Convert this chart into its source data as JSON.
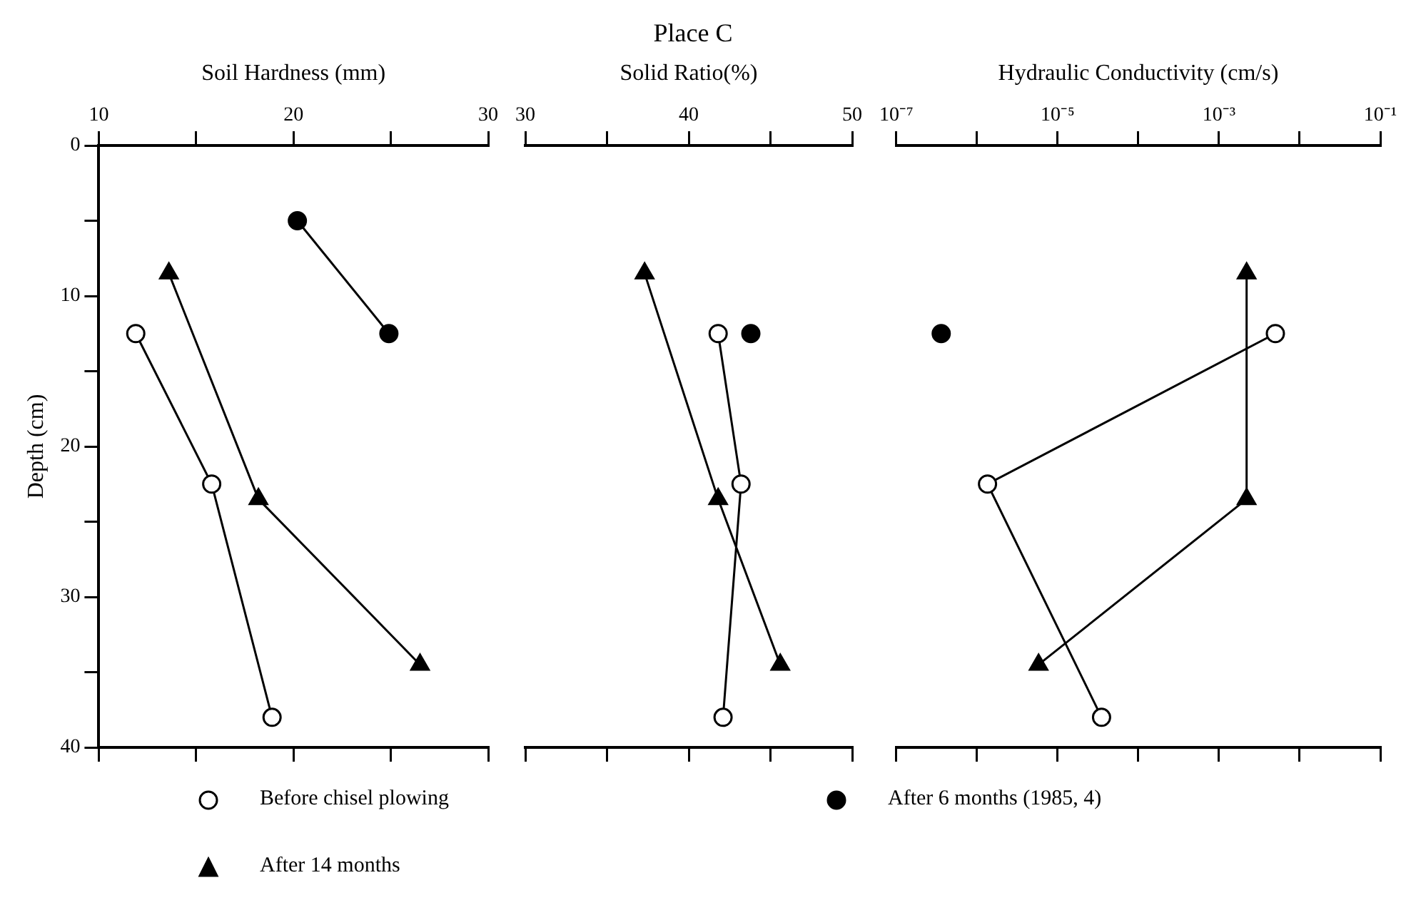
{
  "chart_data": [
    {
      "type": "line",
      "xlabel": "Soil Hardness (mm)",
      "ylabel": "Depth (cm)",
      "legend": "bottom",
      "xlim": [
        10,
        30
      ],
      "xticks": [
        10,
        {
          "value": 15,
          "label": null
        },
        20,
        {
          "value": 25,
          "label": null
        },
        30
      ],
      "ylim": [
        40,
        0
      ],
      "yticks": [
        0,
        {
          "value": 5,
          "label": null
        },
        10,
        {
          "value": 15,
          "label": null
        },
        20,
        {
          "value": 25,
          "label": null
        },
        30,
        {
          "value": 35,
          "label": null
        },
        40
      ],
      "series": [
        {
          "name": "Before chisel plowing",
          "color": "#ffffff",
          "marker": "circle",
          "x": [
            11.9,
            15.8,
            18.9
          ],
          "values": [
            12.5,
            22.5,
            38
          ]
        },
        {
          "name": "After 6 months (1985, 4)",
          "color": "#000000",
          "marker": "circle",
          "x": [
            20.2,
            24.9
          ],
          "values": [
            5,
            12.5
          ]
        },
        {
          "name": "After 14 months",
          "color": "#000000",
          "marker": "triangle",
          "x": [
            13.6,
            18.2,
            26.5
          ],
          "values": [
            8.5,
            23.5,
            34.5
          ]
        }
      ]
    },
    {
      "type": "line",
      "title": "Place C",
      "xlabel": "Solid Ratio(%)",
      "tick_labels": "x",
      "xlim": [
        30,
        50
      ],
      "xticks": [
        30,
        {
          "value": 35,
          "label": null
        },
        40,
        {
          "value": 45,
          "label": null
        },
        50
      ],
      "ylim": [
        40,
        0
      ],
      "yticks": [
        0,
        10,
        20,
        30,
        40
      ],
      "series": [
        {
          "color": "#ffffff",
          "marker": "circle",
          "x": [
            41.8,
            43.2,
            42.1
          ],
          "values": [
            12.5,
            22.5,
            38
          ]
        },
        {
          "color": "#000000",
          "marker": "circle",
          "x": [
            43.8
          ],
          "values": [
            12.5
          ]
        },
        {
          "color": "#000000",
          "marker": "triangle",
          "x": [
            37.3,
            41.8,
            45.6
          ],
          "values": [
            8.5,
            23.5,
            34.5
          ]
        }
      ]
    },
    {
      "type": "line",
      "xlabel": "Hydraulic Conductivity (cm/s)",
      "log": "x",
      "tick_labels": "x",
      "xlim": [
        1e-07,
        0.1
      ],
      "xticks": [
        {
          "value": 1e-07,
          "label": "10⁻⁷"
        },
        {
          "value": 1e-06,
          "label": null
        },
        {
          "value": 1e-05,
          "label": "10⁻⁵"
        },
        {
          "value": 0.0001,
          "label": null
        },
        {
          "value": 0.001,
          "label": "10⁻³"
        },
        {
          "value": 0.01,
          "label": null
        },
        {
          "value": 0.1,
          "label": "10⁻¹"
        }
      ],
      "ylim": [
        40,
        0
      ],
      "yticks": [
        0,
        10,
        20,
        30,
        40
      ],
      "series": [
        {
          "color": "#ffffff",
          "marker": "circle",
          "x": [
            0.005,
            1.35e-06,
            3.5e-05
          ],
          "values": [
            12.5,
            22.5,
            38
          ]
        },
        {
          "color": "#000000",
          "marker": "circle",
          "x": [
            3.6e-07
          ],
          "values": [
            12.5
          ]
        },
        {
          "color": "#000000",
          "marker": "triangle",
          "x": [
            0.0022,
            0.0022,
            5.8e-06
          ],
          "values": [
            8.5,
            23.5,
            34.5
          ]
        }
      ]
    }
  ]
}
